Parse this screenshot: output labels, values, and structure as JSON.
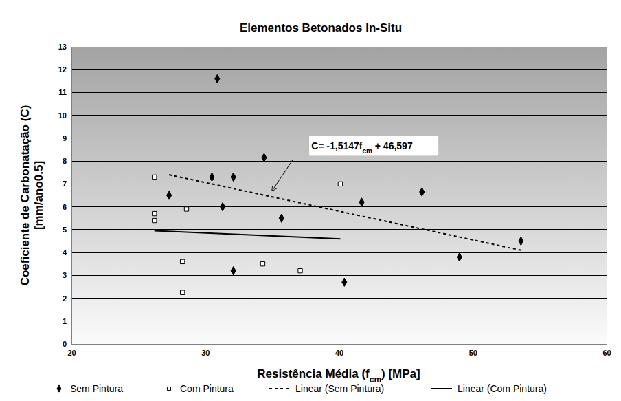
{
  "chart_data": {
    "type": "scatter",
    "title": "Elementos Betonados In-Situ",
    "x_label": [
      "Resistência Média (f",
      "cm",
      ") [MPa]"
    ],
    "y_label": [
      "Coeficiente de Carbonatação (C)",
      "[mm/ano0.5]"
    ],
    "xlim": [
      20,
      60
    ],
    "xticks": [
      20,
      30,
      40,
      50,
      60
    ],
    "ylim": [
      0,
      13
    ],
    "yticks": [
      0,
      1,
      2,
      3,
      4,
      5,
      6,
      7,
      8,
      9,
      10,
      11,
      12,
      13
    ],
    "grid": true,
    "legend": "bottom",
    "annotation": {
      "text": [
        "C= -1,5147f",
        "cm",
        " + 46,597"
      ],
      "x": 35,
      "y": 6.7
    },
    "series": [
      {
        "name": "Sem Pintura",
        "type": "scatter",
        "marker": "diamond",
        "color": "#000000",
        "x": [
          27.3,
          30.9,
          30.5,
          32.1,
          31.3,
          34.4,
          32.1,
          35.7,
          41.7,
          40.4,
          46.2,
          49.0,
          53.6
        ],
        "values": [
          6.5,
          11.6,
          7.3,
          7.3,
          6.0,
          8.15,
          3.2,
          5.5,
          6.2,
          2.7,
          6.65,
          3.8,
          4.5
        ]
      },
      {
        "name": "Com Pintura",
        "type": "scatter",
        "marker": "square-open",
        "color": "#000000",
        "x": [
          26.2,
          26.2,
          26.2,
          28.6,
          28.3,
          28.3,
          34.3,
          37.1,
          40.1
        ],
        "values": [
          7.3,
          5.7,
          5.4,
          5.9,
          3.6,
          2.25,
          3.5,
          3.2,
          7.0
        ]
      },
      {
        "name": "Linear (Sem Pintura)",
        "type": "line",
        "line_style": "dashed",
        "color": "#000000",
        "x": [
          27.3,
          53.6
        ],
        "values": [
          7.4,
          4.1
        ]
      },
      {
        "name": "Linear (Com Pintura)",
        "type": "line",
        "line_style": "solid",
        "color": "#000000",
        "x": [
          26.2,
          40.1
        ],
        "values": [
          4.95,
          4.6
        ]
      }
    ]
  }
}
